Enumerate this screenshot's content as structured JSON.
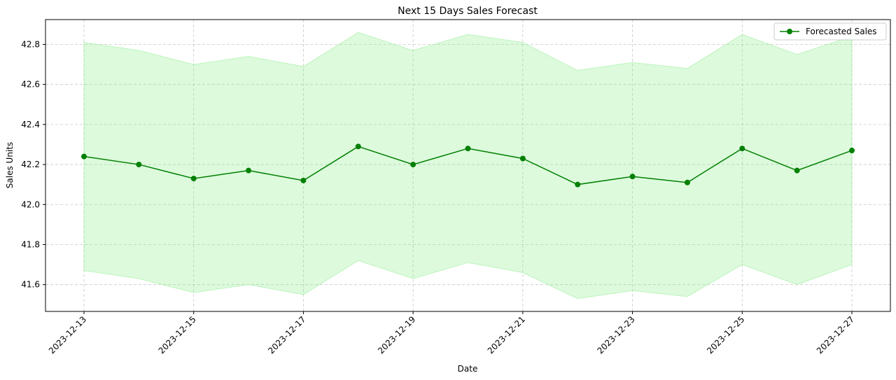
{
  "chart_data": {
    "type": "line",
    "title": "Next 15 Days Sales Forecast",
    "xlabel": "Date",
    "ylabel": "Sales Units",
    "x": [
      "2023-12-13",
      "2023-12-14",
      "2023-12-15",
      "2023-12-16",
      "2023-12-17",
      "2023-12-18",
      "2023-12-19",
      "2023-12-20",
      "2023-12-21",
      "2023-12-22",
      "2023-12-23",
      "2023-12-24",
      "2023-12-25",
      "2023-12-26",
      "2023-12-27"
    ],
    "xticks": [
      "2023-12-13",
      "2023-12-15",
      "2023-12-17",
      "2023-12-19",
      "2023-12-21",
      "2023-12-23",
      "2023-12-25",
      "2023-12-27"
    ],
    "yticks": [
      41.6,
      41.8,
      42.0,
      42.2,
      42.4,
      42.6,
      42.8
    ],
    "ylim": [
      41.466,
      42.924
    ],
    "grid": true,
    "legend_position": "upper right",
    "series": [
      {
        "name": "Forecasted Sales",
        "color": "#008000",
        "marker": "circle",
        "values": [
          42.24,
          42.2,
          42.13,
          42.17,
          42.12,
          42.29,
          42.2,
          42.28,
          42.23,
          42.1,
          42.14,
          42.11,
          42.28,
          42.17,
          42.27
        ]
      }
    ],
    "band": {
      "color": "#90ee90",
      "opacity": 0.3,
      "upper": [
        42.81,
        42.77,
        42.7,
        42.74,
        42.69,
        42.86,
        42.77,
        42.85,
        42.81,
        42.67,
        42.71,
        42.68,
        42.85,
        42.75,
        42.84
      ],
      "lower": [
        41.67,
        41.63,
        41.56,
        41.6,
        41.55,
        41.72,
        41.63,
        41.71,
        41.66,
        41.53,
        41.57,
        41.54,
        41.7,
        41.6,
        41.7
      ]
    }
  }
}
